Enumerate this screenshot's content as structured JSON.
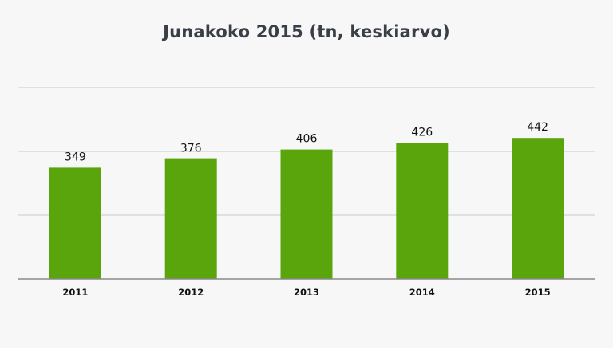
{
  "chart_data": {
    "type": "bar",
    "title": "Junakoko 2015 (tn, keskiarvo)",
    "categories": [
      "2011",
      "2012",
      "2013",
      "2014",
      "2015"
    ],
    "values": [
      349,
      376,
      406,
      426,
      442
    ],
    "data_labels": [
      "349",
      "376",
      "406",
      "426",
      "442"
    ],
    "xlabel": "",
    "ylabel": "",
    "ylim": [
      0,
      600
    ],
    "y_ticks_shown": false,
    "grid": true,
    "legend": "none",
    "colors": {
      "bar": "#5aa50c",
      "background": "#f7f7f7",
      "title": "#3a3f47",
      "grid": "#c8c8c8"
    }
  }
}
